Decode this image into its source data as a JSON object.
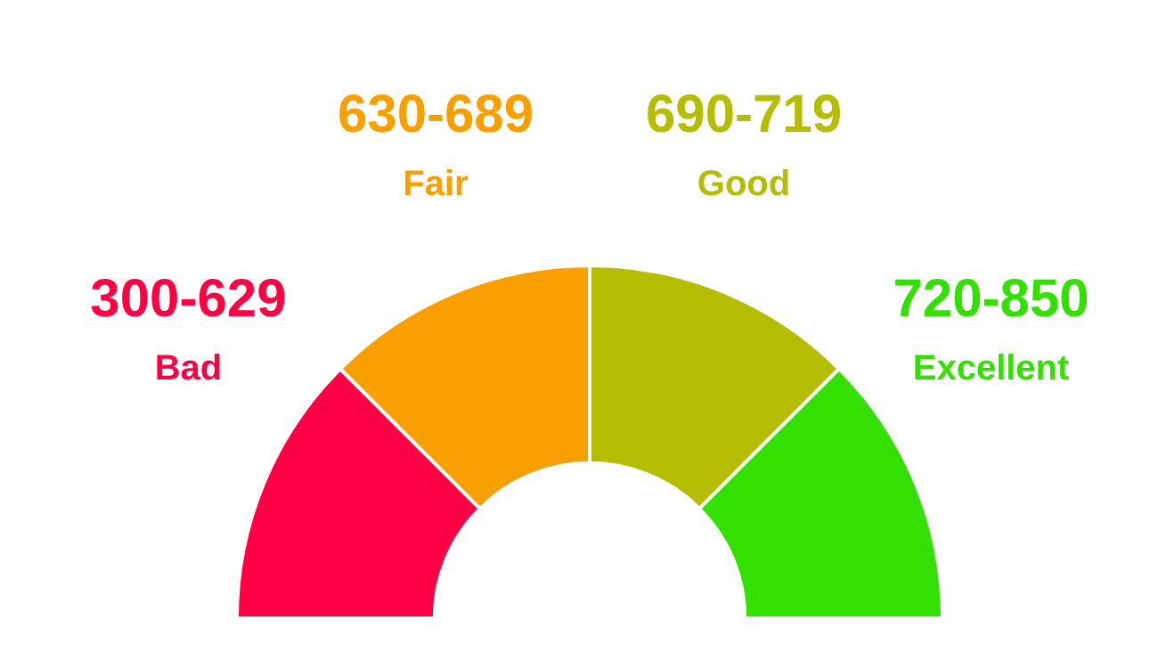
{
  "chart_data": {
    "type": "donut",
    "categories": [
      "Bad",
      "Fair",
      "Good",
      "Excellent"
    ],
    "values": [
      25,
      25,
      25,
      25
    ],
    "value_labels": [
      "300-629",
      "630-689",
      "690-719",
      "720-850"
    ],
    "colors": [
      "#ff0044",
      "#f9a000",
      "#b5bd00",
      "#33e000"
    ],
    "legend": false
  }
}
